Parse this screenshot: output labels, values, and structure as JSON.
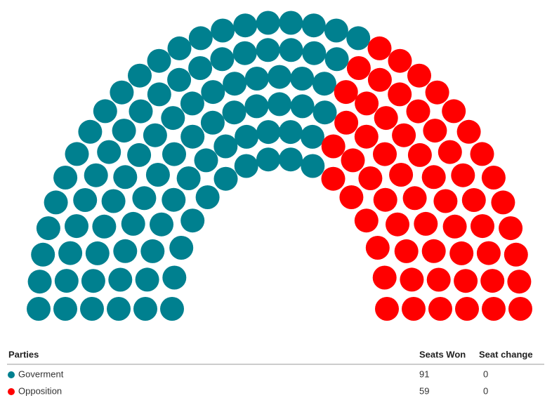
{
  "chart_data": {
    "type": "parliament",
    "columns": [
      "Parties",
      "Seats Won",
      "Seat change"
    ],
    "parties": [
      {
        "name": "Goverment",
        "color": "#00808f",
        "seats": 91,
        "change": 0
      },
      {
        "name": "Opposition",
        "color": "#ff0000",
        "seats": 59,
        "change": 0
      }
    ]
  }
}
